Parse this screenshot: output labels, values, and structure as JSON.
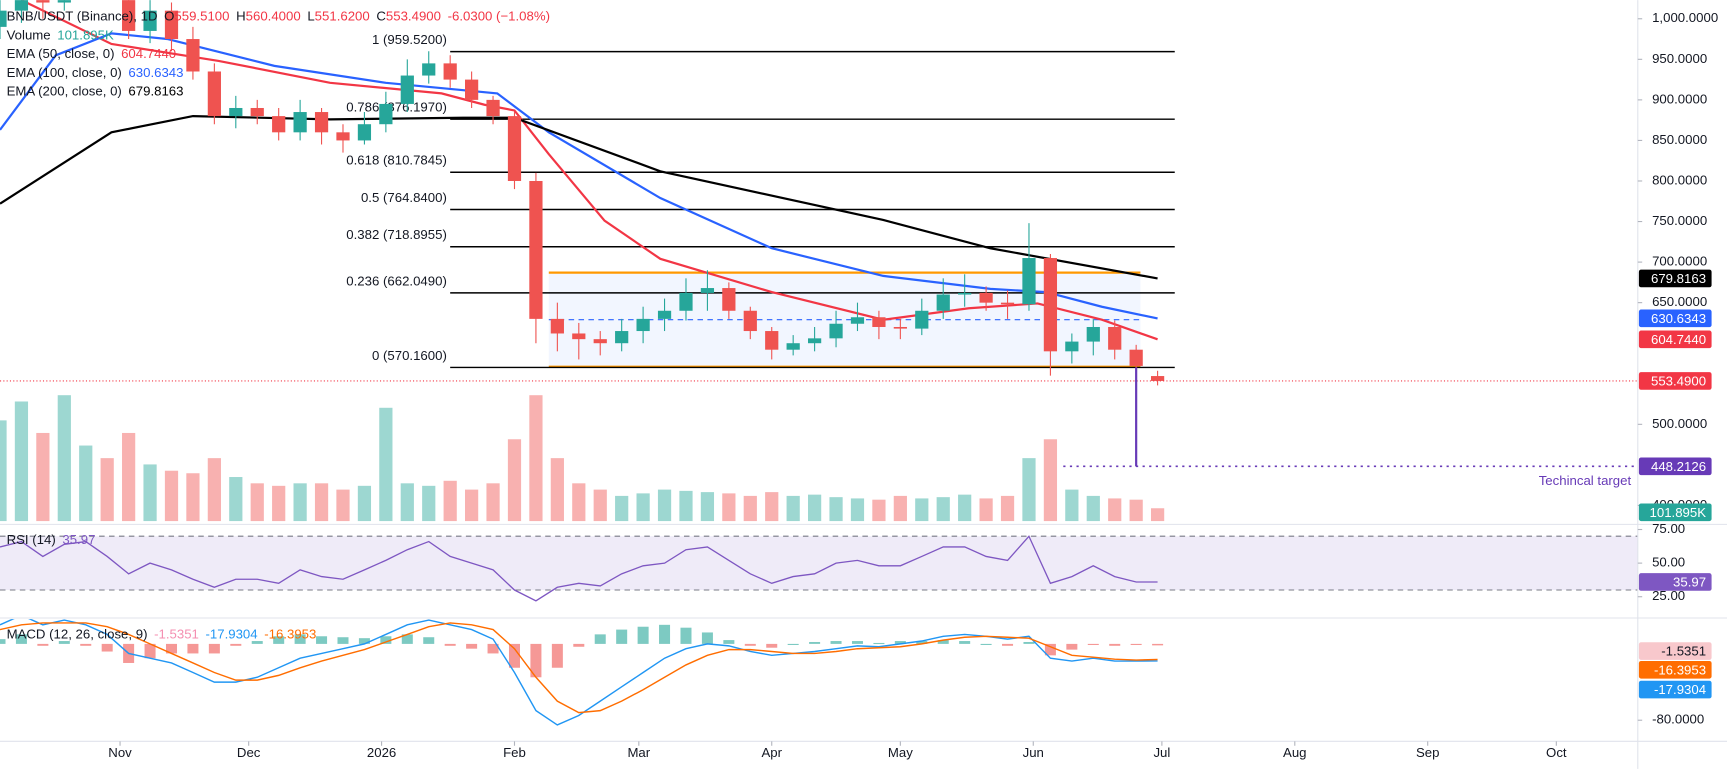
{
  "header": {
    "symbol": "BNB/USDT (Binance), 1D",
    "ohlc": [
      {
        "key": "O",
        "value": "559.5100"
      },
      {
        "key": "H",
        "value": "560.4000"
      },
      {
        "key": "L",
        "value": "551.6200"
      },
      {
        "key": "C",
        "value": "553.4900"
      }
    ],
    "change": "-6.0300 (−1.08%)"
  },
  "chart_data": {
    "type": "candlestick",
    "x": [
      0,
      5,
      10,
      15,
      20,
      25,
      30,
      35,
      40,
      45,
      50,
      55,
      60,
      65,
      70,
      75,
      80,
      85,
      90,
      95,
      100,
      105,
      110,
      115,
      120,
      125,
      130,
      135,
      140,
      145,
      150,
      155,
      160,
      165,
      170,
      175,
      180,
      185,
      190,
      195,
      200,
      205,
      210,
      215,
      220,
      225,
      230,
      235,
      240,
      245,
      250,
      255,
      260,
      265,
      270
    ],
    "open": [
      990,
      1010,
      1060,
      1020,
      1080,
      1100,
      1050,
      985,
      1010,
      975,
      935,
      880,
      890,
      880,
      860,
      885,
      860,
      850,
      870,
      895,
      930,
      945,
      925,
      900,
      880,
      800,
      630,
      612,
      605,
      600,
      615,
      630,
      640,
      662,
      668,
      640,
      615,
      592,
      600,
      606,
      624,
      632,
      620,
      618,
      640,
      660,
      662,
      650,
      648,
      705,
      590,
      602,
      620,
      592,
      559.51
    ],
    "high": [
      1030,
      1090,
      1080,
      1100,
      1120,
      1110,
      1060,
      1030,
      1020,
      990,
      945,
      905,
      900,
      890,
      900,
      890,
      870,
      885,
      910,
      950,
      960,
      955,
      935,
      905,
      885,
      810,
      650,
      625,
      615,
      630,
      645,
      655,
      680,
      690,
      675,
      645,
      620,
      610,
      620,
      640,
      650,
      640,
      630,
      655,
      680,
      685,
      670,
      665,
      748,
      710,
      612,
      630,
      628,
      598,
      566
    ],
    "low": [
      975,
      995,
      1000,
      1010,
      1070,
      1040,
      975,
      970,
      960,
      925,
      870,
      865,
      870,
      850,
      850,
      845,
      835,
      845,
      860,
      885,
      920,
      915,
      890,
      870,
      790,
      600,
      590,
      580,
      585,
      590,
      600,
      615,
      628,
      640,
      630,
      605,
      580,
      585,
      590,
      595,
      615,
      605,
      605,
      610,
      630,
      645,
      640,
      630,
      640,
      560,
      575,
      585,
      580,
      560,
      548
    ],
    "close": [
      1010,
      1060,
      1020,
      1080,
      1100,
      1050,
      985,
      1010,
      975,
      935,
      880,
      890,
      880,
      860,
      885,
      860,
      850,
      870,
      895,
      930,
      945,
      925,
      900,
      880,
      800,
      630,
      612,
      605,
      600,
      615,
      630,
      640,
      662,
      668,
      640,
      615,
      592,
      600,
      606,
      624,
      632,
      620,
      618,
      640,
      660,
      662,
      650,
      648,
      705,
      590,
      602,
      620,
      592,
      572,
      553.49
    ],
    "up_color": "#26a69a",
    "down_color": "#ef5350",
    "xlim": [
      0,
      382
    ],
    "xticks": [
      {
        "value": 28,
        "label": "Nov"
      },
      {
        "value": 58,
        "label": "Dec"
      },
      {
        "value": 89,
        "label": "2026"
      },
      {
        "value": 120,
        "label": "Feb"
      },
      {
        "value": 149,
        "label": "Mar"
      },
      {
        "value": 180,
        "label": "Apr"
      },
      {
        "value": 210,
        "label": "May"
      },
      {
        "value": 241,
        "label": "Jun"
      },
      {
        "value": 271,
        "label": "Jul"
      },
      {
        "value": 302,
        "label": "Aug"
      },
      {
        "value": 333,
        "label": "Sep"
      },
      {
        "value": 363,
        "label": "Oct"
      }
    ],
    "ylim": [
      378,
      1023
    ],
    "yticks": [
      {
        "value": 1000,
        "label": "1,000.0000"
      },
      {
        "value": 950,
        "label": "950.0000"
      },
      {
        "value": 900,
        "label": "900.0000"
      },
      {
        "value": 850,
        "label": "850.0000"
      },
      {
        "value": 800,
        "label": "800.0000"
      },
      {
        "value": 750,
        "label": "750.0000"
      },
      {
        "value": 700,
        "label": "700.0000"
      },
      {
        "value": 650,
        "label": "650.0000"
      },
      {
        "value": 500,
        "label": "500.0000"
      },
      {
        "value": 400,
        "label": "400.0000"
      }
    ],
    "last_price": {
      "value": 553.49,
      "label": "553.4900",
      "color": "#f23645"
    },
    "volume": {
      "name": "Volume",
      "value_label": "101.895K",
      "ylim": [
        0,
        1400000
      ],
      "values": [
        800000,
        950000,
        700000,
        1000000,
        600000,
        500000,
        700000,
        450000,
        400000,
        380000,
        500000,
        350000,
        300000,
        280000,
        300000,
        300000,
        250000,
        280000,
        900000,
        300000,
        280000,
        320000,
        250000,
        300000,
        650000,
        1000000,
        500000,
        300000,
        250000,
        200000,
        220000,
        250000,
        240000,
        230000,
        220000,
        200000,
        230000,
        200000,
        210000,
        190000,
        180000,
        170000,
        200000,
        180000,
        190000,
        210000,
        180000,
        200000,
        500000,
        650000,
        250000,
        200000,
        180000,
        170000,
        101895
      ]
    },
    "ema": [
      {
        "name": "EMA (50, close, 0)",
        "color": "#f23645",
        "value_label": "604.7440",
        "x": [
          5,
          26,
          51,
          77,
          103,
          113,
          120,
          128,
          141,
          154,
          180,
          206,
          226,
          242,
          257,
          270
        ],
        "values": [
          1023,
          969,
          948,
          921,
          908,
          894,
          887,
          833,
          751,
          704,
          663,
          629,
          643,
          649,
          629,
          604.744
        ]
      },
      {
        "name": "EMA (100, close, 0)",
        "color": "#2962ff",
        "value_label": "630.6343",
        "x": [
          0,
          13,
          26,
          39,
          64,
          90,
          116,
          128,
          154,
          180,
          206,
          231,
          244,
          257,
          270
        ],
        "values": [
          863,
          955,
          982,
          975,
          942,
          921,
          908,
          860,
          779,
          717,
          683,
          667,
          663,
          645,
          630.6343
        ]
      },
      {
        "name": "EMA (200, close, 0)",
        "color": "#000000",
        "value_label": "679.8163",
        "x": [
          0,
          26,
          45,
          77,
          108,
          120,
          154,
          206,
          231,
          270
        ],
        "values": [
          772,
          860,
          880,
          876,
          878,
          878,
          812,
          752,
          717,
          679.8163
        ]
      }
    ],
    "fib": {
      "x": [
        105,
        274
      ],
      "levels": [
        {
          "value": 959.52,
          "label": "1 (959.5200)"
        },
        {
          "value": 876.197,
          "label": "0.786 (876.1970)"
        },
        {
          "value": 810.7845,
          "label": "0.618 (810.7845)"
        },
        {
          "value": 764.84,
          "label": "0.5 (764.8400)"
        },
        {
          "value": 718.8955,
          "label": "0.382 (718.8955)"
        },
        {
          "value": 662.049,
          "label": "0.236 (662.0490)"
        },
        {
          "value": 570.16,
          "label": "0 (570.1600)"
        }
      ]
    },
    "range_box": {
      "x": [
        128,
        266
      ],
      "top": 687,
      "bottom": 571,
      "mid": 629,
      "color": "#ff9800"
    },
    "target": {
      "x": [
        248,
        265
      ],
      "from": 570.16,
      "value": 448.2126,
      "label": "448.2126",
      "text": "Techincal target",
      "color": "#673ab7"
    },
    "rsi": {
      "name": "RSI (14)",
      "color": "#7e57c2",
      "ylim": [
        10,
        78
      ],
      "yticks": [
        {
          "value": 25,
          "label": "25.00"
        },
        {
          "value": 50,
          "label": "50.00"
        },
        {
          "value": 75,
          "label": "75.00"
        }
      ],
      "band": [
        30,
        70
      ],
      "values": [
        62,
        66,
        55,
        64,
        66,
        55,
        42,
        50,
        45,
        38,
        32,
        38,
        38,
        35,
        45,
        40,
        38,
        45,
        52,
        60,
        66,
        55,
        50,
        45,
        30,
        22,
        32,
        35,
        33,
        42,
        48,
        50,
        60,
        62,
        52,
        42,
        35,
        40,
        42,
        50,
        52,
        48,
        48,
        55,
        62,
        62,
        55,
        52,
        70,
        35,
        40,
        48,
        40,
        36,
        35.97
      ]
    },
    "macd": {
      "name": "MACD (12, 26, close, 9)",
      "ylim": [
        -101,
        26
      ],
      "yticks": [
        {
          "value": -80,
          "label": "-80.0000"
        }
      ],
      "histogram": {
        "colors": [
          "#26a69a",
          "#ef5350"
        ],
        "values": [
          5,
          10,
          -2,
          3,
          -2,
          -8,
          -20,
          -15,
          -10,
          -10,
          -10,
          -2,
          3,
          8,
          10,
          8,
          7,
          6,
          8,
          10,
          7,
          -2,
          -5,
          -10,
          -25,
          -35,
          -25,
          -3,
          10,
          15,
          18,
          20,
          17,
          12,
          4,
          -2,
          -4,
          0,
          2,
          3,
          3,
          1,
          3,
          3,
          4,
          3,
          0,
          -2,
          2,
          -12,
          -6,
          -1,
          -2,
          -1,
          -1.5351
        ]
      },
      "macd_line": {
        "color": "#2196f3",
        "values": [
          20,
          30,
          20,
          25,
          20,
          10,
          -10,
          -15,
          -20,
          -30,
          -40,
          -40,
          -35,
          -25,
          -15,
          -10,
          -5,
          0,
          10,
          20,
          25,
          20,
          15,
          5,
          -30,
          -70,
          -85,
          -75,
          -60,
          -45,
          -30,
          -15,
          -5,
          0,
          -2,
          -8,
          -12,
          -10,
          -8,
          -5,
          -2,
          -3,
          0,
          3,
          8,
          10,
          8,
          5,
          8,
          -15,
          -18,
          -15,
          -18,
          -18,
          -17.9304
        ]
      },
      "signal": {
        "color": "#ff6d00",
        "values": [
          15,
          20,
          22,
          22,
          22,
          18,
          10,
          0,
          -10,
          -20,
          -30,
          -38,
          -38,
          -33,
          -25,
          -18,
          -12,
          -6,
          2,
          10,
          18,
          22,
          20,
          15,
          -5,
          -35,
          -60,
          -72,
          -70,
          -60,
          -48,
          -35,
          -22,
          -12,
          -6,
          -6,
          -8,
          -10,
          -10,
          -8,
          -5,
          -4,
          -3,
          0,
          4,
          7,
          8,
          7,
          6,
          -3,
          -12,
          -14,
          -16,
          -17,
          -16.3953
        ]
      }
    }
  }
}
